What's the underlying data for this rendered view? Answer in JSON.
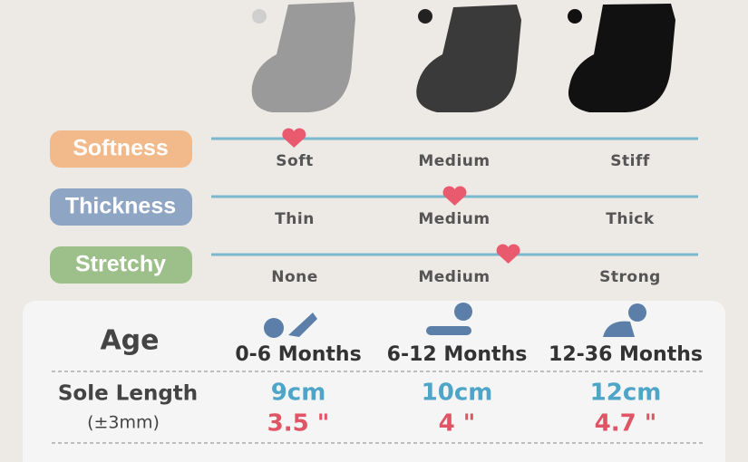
{
  "ratings": [
    {
      "label": "Softness",
      "levels": [
        "Soft",
        "Medium",
        "Stiff"
      ],
      "rating": 0.17
    },
    {
      "label": "Thickness",
      "levels": [
        "Thin",
        "Medium",
        "Thick"
      ],
      "rating": 0.5
    },
    {
      "label": "Stretchy",
      "levels": [
        "None",
        "Medium",
        "Strong"
      ],
      "rating": 0.61
    }
  ],
  "table": {
    "age_label": "Age",
    "ages": [
      "0-6 Months",
      "6-12 Months",
      "12-36 Months"
    ],
    "sole_label": "Sole Length",
    "sole_note": "(±3mm)",
    "cm": [
      "9cm",
      "10cm",
      "12cm"
    ],
    "inches": [
      "3.5 \"",
      "4 \"",
      "4.7 \""
    ]
  }
}
